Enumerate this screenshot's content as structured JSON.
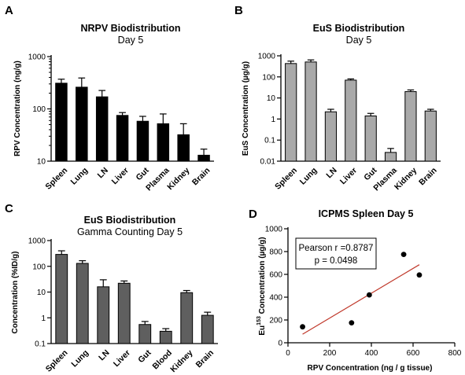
{
  "chart_data": [
    {
      "panel": "A",
      "type": "bar",
      "title": "NRPV Biodistribution",
      "subtitle": "Day 5",
      "ylabel": "RPV Concentration (ng/g)",
      "xlabel": "",
      "scale": "log",
      "ylim": [
        10,
        1000
      ],
      "yticks": [
        10,
        100,
        1000
      ],
      "ytick_labels": [
        "10",
        "100",
        "1000"
      ],
      "minor_ticks": true,
      "bar_color": "#000000",
      "categories": [
        "Spleen",
        "Lung",
        "LN",
        "Liver",
        "Gut",
        "Plasma",
        "Kidney",
        "Brain"
      ],
      "values": [
        310,
        260,
        170,
        75,
        58,
        52,
        32,
        13
      ],
      "errors_upper": [
        370,
        390,
        225,
        85,
        72,
        80,
        52,
        17
      ]
    },
    {
      "panel": "B",
      "type": "bar",
      "title": "EuS Biodistribution",
      "subtitle": "Day 5",
      "ylabel": "EuS Concentration (µg/g)",
      "xlabel": "",
      "scale": "log",
      "ylim": [
        0.01,
        1000
      ],
      "yticks": [
        0.01,
        0.1,
        1,
        10,
        100,
        1000
      ],
      "ytick_labels": [
        "0.01",
        "0.1",
        "1",
        "10",
        "100",
        "1000"
      ],
      "minor_ticks": false,
      "bar_color": "#a9a9a9",
      "categories": [
        "Spleen",
        "Lung",
        "LN",
        "Liver",
        "Gut",
        "Plasma",
        "Kidney",
        "Brain"
      ],
      "values": [
        430,
        510,
        2.2,
        70,
        1.4,
        0.026,
        20,
        2.4
      ],
      "errors_upper": [
        560,
        640,
        2.9,
        80,
        1.85,
        0.04,
        24,
        2.9
      ]
    },
    {
      "panel": "C",
      "type": "bar",
      "title": "EuS Biodistribution",
      "subtitle": "Gamma Counting Day 5",
      "ylabel": "Concentration (%ID/g)",
      "xlabel": "",
      "scale": "log",
      "ylim": [
        0.1,
        1000
      ],
      "yticks": [
        0.1,
        1,
        10,
        100,
        1000
      ],
      "ytick_labels": [
        "0.1",
        "1",
        "10",
        "100",
        "1000"
      ],
      "minor_ticks": false,
      "bar_color": "#5f5f5f",
      "categories": [
        "Spleen",
        "Lung",
        "LN",
        "Liver",
        "Gut",
        "Blood",
        "Kidney",
        "Brain"
      ],
      "values": [
        290,
        130,
        16,
        22,
        0.55,
        0.3,
        9.5,
        1.25
      ],
      "errors_upper": [
        400,
        165,
        30,
        27,
        0.72,
        0.38,
        11.5,
        1.65
      ]
    },
    {
      "panel": "D",
      "type": "scatter",
      "title": "ICPMS Spleen Day 5",
      "subtitle": "",
      "ylabel_main": "Eu",
      "ylabel_sup": "153",
      "ylabel_rest": " Concentration (µg/g)",
      "xlabel": "RPV Concentration (ng / g tissue)",
      "xlim": [
        0,
        800
      ],
      "ylim": [
        0,
        1000
      ],
      "xticks": [
        0,
        200,
        400,
        600,
        800
      ],
      "yticks": [
        0,
        200,
        400,
        600,
        800,
        1000
      ],
      "points": [
        {
          "x": 70,
          "y": 140
        },
        {
          "x": 305,
          "y": 175
        },
        {
          "x": 390,
          "y": 420
        },
        {
          "x": 555,
          "y": 775
        },
        {
          "x": 630,
          "y": 595
        }
      ],
      "fit_line": {
        "x1": 70,
        "y1": 75,
        "x2": 630,
        "y2": 685,
        "color": "#c0392b"
      },
      "annotation_line1": "Pearson r =0.8787",
      "annotation_line2": "p = 0.0498"
    }
  ]
}
